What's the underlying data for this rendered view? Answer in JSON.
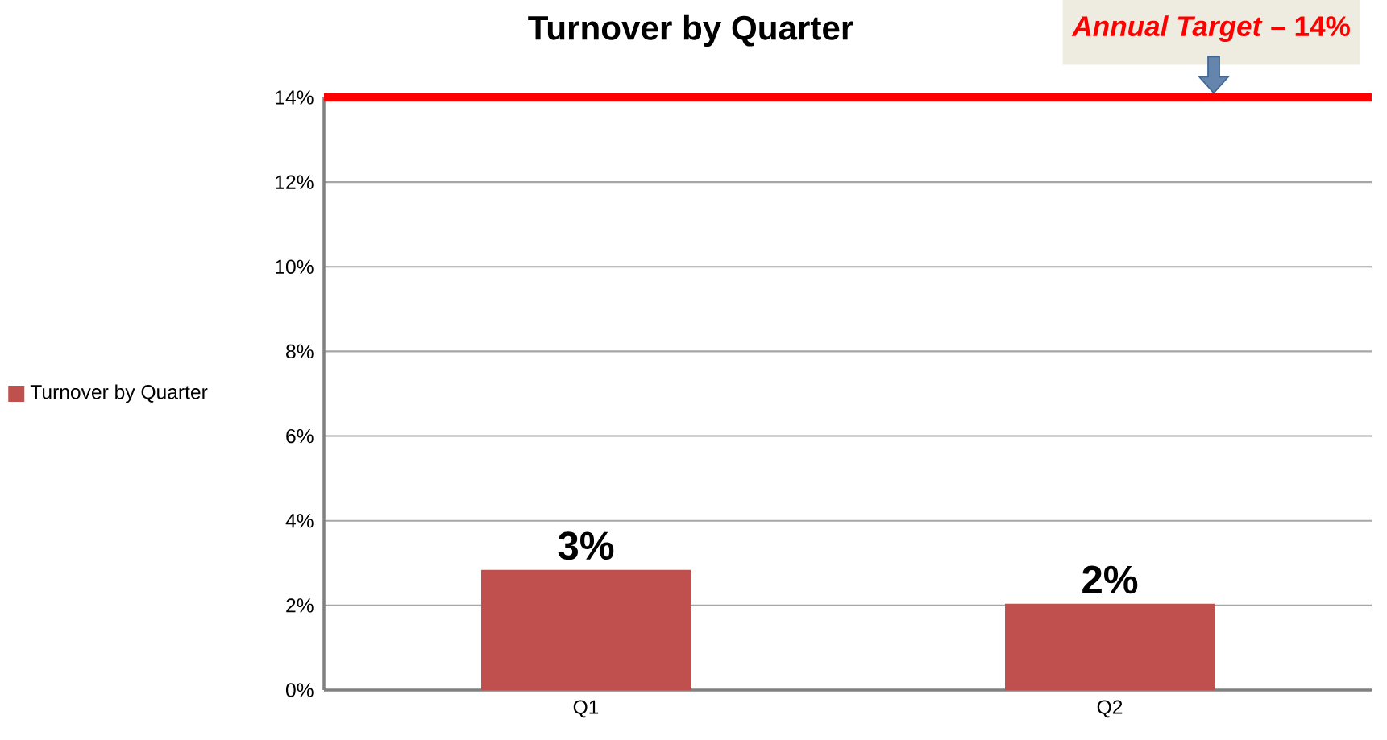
{
  "chart_data": {
    "type": "bar",
    "title": "Turnover by Quarter",
    "categories": [
      "Q1",
      "Q2"
    ],
    "series": [
      {
        "name": "Turnover by Quarter",
        "color": "#c0504d",
        "values": [
          2.84,
          2.04
        ],
        "value_labels": [
          "3%",
          "2%"
        ]
      }
    ],
    "ylim": [
      0,
      14
    ],
    "yticks": [
      {
        "value": 0,
        "label": "0%"
      },
      {
        "value": 2,
        "label": "2%"
      },
      {
        "value": 4,
        "label": "4%"
      },
      {
        "value": 6,
        "label": "6%"
      },
      {
        "value": 8,
        "label": "8%"
      },
      {
        "value": 10,
        "label": "10%"
      },
      {
        "value": 12,
        "label": "12%"
      },
      {
        "value": 14,
        "label": "14%"
      }
    ],
    "ref_lines": [
      {
        "axis": "y",
        "value": 14,
        "label": "*Annual Target* – 14%",
        "color": "#ff0000"
      }
    ],
    "grid": "y",
    "legend": "left"
  }
}
